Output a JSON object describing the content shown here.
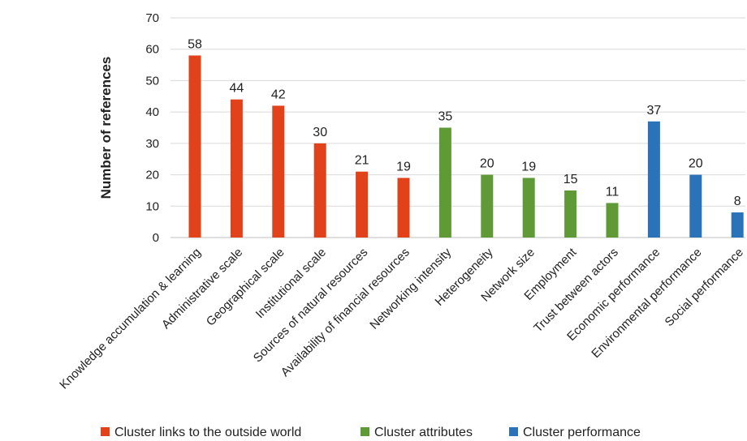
{
  "chart_data": {
    "type": "bar",
    "title": "",
    "xlabel": "",
    "ylabel": "Number of references",
    "ylim": [
      0,
      70
    ],
    "yticks": [
      0,
      10,
      20,
      30,
      40,
      50,
      60,
      70
    ],
    "grid": true,
    "legend_position": "bottom",
    "categories": [
      "Knowledge accumulation & learning",
      "Administrative scale",
      "Geographical scale",
      "Institutional scale",
      "Sources of natural resources",
      "Availability of financial resources",
      "Networking intensity",
      "Heterogeneity",
      "Network size",
      "Employment",
      "Trust between actors",
      "Economic performance",
      "Environmental performance",
      "Social performance"
    ],
    "values": [
      58,
      44,
      42,
      30,
      21,
      19,
      35,
      20,
      19,
      15,
      11,
      37,
      20,
      8
    ],
    "groups": [
      0,
      0,
      0,
      0,
      0,
      0,
      1,
      1,
      1,
      1,
      1,
      2,
      2,
      2
    ],
    "series": [
      {
        "name": "Cluster links to the outside world",
        "color": "#e2421a"
      },
      {
        "name": "Cluster attributes",
        "color": "#5f9a36"
      },
      {
        "name": "Cluster performance",
        "color": "#2b73b8"
      }
    ],
    "gridline_color": "#d9d9d9",
    "axis_color": "#bfbfbf"
  }
}
